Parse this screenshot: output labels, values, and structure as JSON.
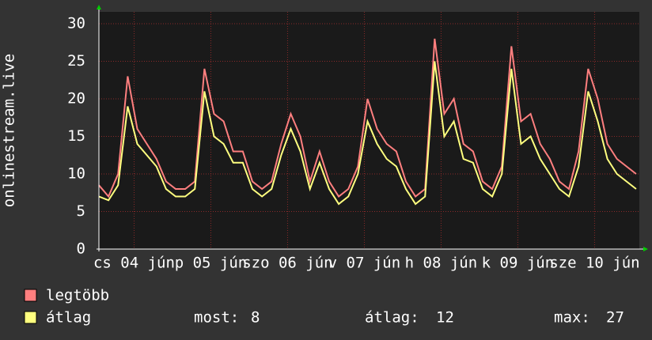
{
  "chart_data": {
    "type": "line",
    "y_label": "onlinestream.live",
    "x": [
      0,
      3,
      6,
      9,
      12,
      15,
      18,
      21,
      24,
      27,
      30,
      33,
      36,
      39,
      42,
      45,
      48,
      51,
      54,
      57,
      60,
      63,
      66,
      69,
      72,
      75,
      78,
      81,
      84,
      87,
      90,
      93,
      96,
      99,
      102,
      105,
      108,
      111,
      114,
      117,
      120,
      123,
      126,
      129,
      132,
      135,
      138,
      141,
      144,
      147,
      150,
      153,
      156,
      159,
      162,
      165,
      168
    ],
    "xlim": [
      0,
      169
    ],
    "xticks": [
      {
        "value": 11,
        "label": "cs 04 jún"
      },
      {
        "value": 35,
        "label": "p 05 jún"
      },
      {
        "value": 59,
        "label": "szo 06 jún"
      },
      {
        "value": 83,
        "label": "v 07 jún"
      },
      {
        "value": 107,
        "label": "h 08 jún"
      },
      {
        "value": 131,
        "label": "k 09 jún"
      },
      {
        "value": 155,
        "label": "sze 10 jún"
      }
    ],
    "ylim": [
      0,
      30
    ],
    "yticks": [
      0,
      5,
      10,
      15,
      20,
      25,
      30
    ],
    "grid": true,
    "series": [
      {
        "name": "legtöbb",
        "color": "#ff7f7f",
        "values": [
          8.5,
          7,
          10,
          23,
          16,
          14,
          12,
          9,
          8,
          8,
          9,
          24,
          18,
          17,
          13,
          13,
          9,
          8,
          9,
          14,
          18,
          15,
          9,
          13,
          9,
          7,
          8,
          11,
          20,
          16,
          14,
          13,
          9,
          7,
          8,
          28,
          18,
          20,
          14,
          13,
          9,
          8,
          11,
          27,
          17,
          18,
          14,
          12,
          9,
          8,
          13,
          24,
          20,
          14,
          12,
          11,
          10
        ]
      },
      {
        "name": "átlag",
        "color": "#ffff7f",
        "values": [
          7,
          6.5,
          8.5,
          19,
          14,
          12.5,
          11,
          8,
          7,
          7,
          8,
          21,
          15,
          14,
          11.5,
          11.5,
          8,
          7,
          8,
          12.5,
          16,
          13,
          8,
          11.5,
          8,
          6,
          7,
          10,
          17,
          14,
          12,
          11,
          8,
          6,
          7,
          25,
          15,
          17,
          12,
          11.5,
          8,
          7,
          10,
          24,
          14,
          15,
          12,
          10,
          8,
          7,
          11,
          21,
          17,
          12,
          10,
          9,
          8
        ]
      }
    ],
    "stats": [
      {
        "label": "most:",
        "value": 8
      },
      {
        "label": "átlag:",
        "value": 12
      },
      {
        "label": "max:",
        "value": 27
      }
    ]
  }
}
